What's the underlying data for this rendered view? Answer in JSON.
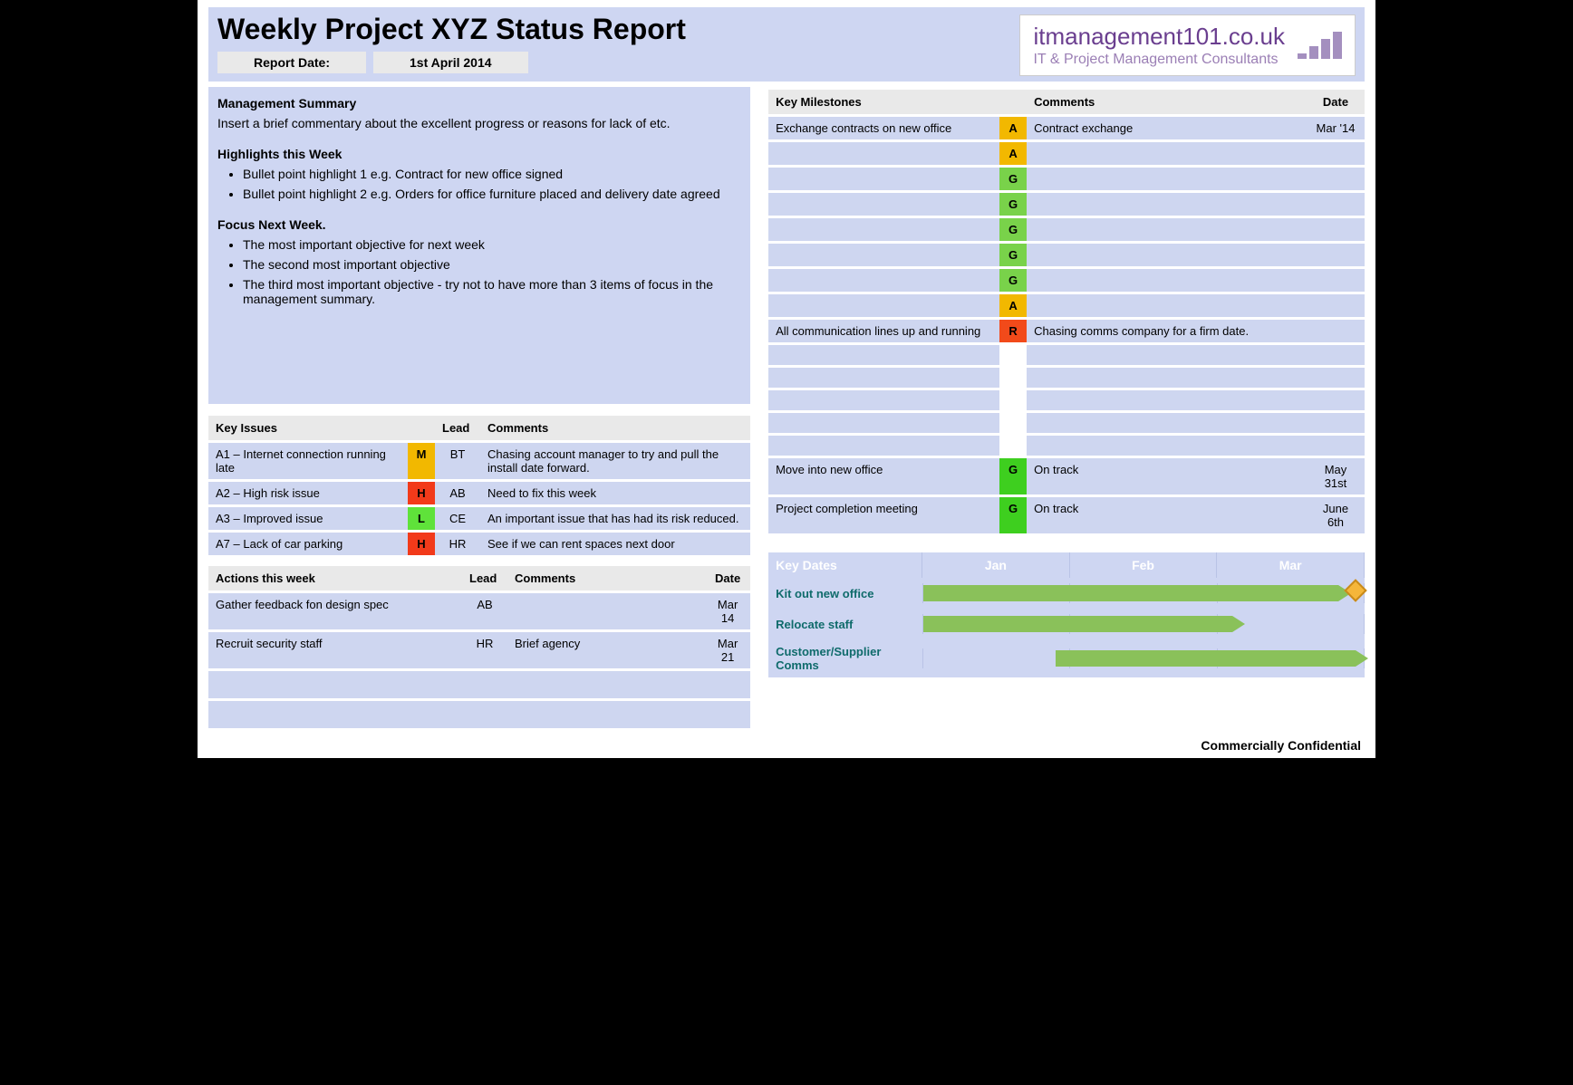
{
  "header": {
    "title": "Weekly Project XYZ Status Report",
    "report_date_label": "Report Date:",
    "report_date_value": "1st April 2014"
  },
  "logo": {
    "line1": "itmanagement101.co.uk",
    "line2": "IT & Project Management Consultants"
  },
  "summary": {
    "management_heading": "Management Summary",
    "management_text": "Insert a brief commentary about the excellent  progress or reasons for lack of etc.",
    "highlights_heading": "Highlights this Week",
    "highlights": [
      "Bullet point highlight 1 e.g. Contract for new office signed",
      "Bullet point highlight 2 e.g. Orders for office furniture placed and delivery date agreed"
    ],
    "focus_heading": "Focus Next Week.",
    "focus": [
      "The most important objective for next week",
      "The second most important objective",
      "The third most important objective  - try not to have more than 3 items of focus in the management summary."
    ]
  },
  "issues_table": {
    "headers": {
      "issue": "Key Issues",
      "sev": "",
      "lead": "Lead",
      "comments": "Comments"
    },
    "rows": [
      {
        "issue": "A1 – Internet connection running late",
        "sev": "M",
        "lead": "BT",
        "comments": "Chasing account manager to try and pull the install date forward."
      },
      {
        "issue": "A2 – High risk issue",
        "sev": "H",
        "lead": "AB",
        "comments": "Need to fix this week"
      },
      {
        "issue": "A3 – Improved issue",
        "sev": "L",
        "lead": "CE",
        "comments": "An important issue that has had its risk reduced."
      },
      {
        "issue": "A7 – Lack of car parking",
        "sev": "H",
        "lead": "HR",
        "comments": "See if we can rent spaces next door"
      }
    ]
  },
  "actions_table": {
    "headers": {
      "action": "Actions this week",
      "lead": "Lead",
      "comments": "Comments",
      "date": "Date"
    },
    "rows": [
      {
        "action": "Gather feedback fon design spec",
        "lead": "AB",
        "comments": "",
        "date": "Mar 14"
      },
      {
        "action": "Recruit security staff",
        "lead": "HR",
        "comments": "Brief agency",
        "date": "Mar 21"
      },
      {
        "action": "",
        "lead": "",
        "comments": "",
        "date": ""
      },
      {
        "action": "",
        "lead": "",
        "comments": "",
        "date": ""
      }
    ]
  },
  "milestones_table": {
    "headers": {
      "milestone": "Key Milestones",
      "rag": "",
      "comments": "Comments",
      "date": "Date"
    },
    "rows": [
      {
        "milestone": "Exchange contracts on new office",
        "rag": "A",
        "comments": "Contract exchange",
        "date": "Mar '14"
      },
      {
        "milestone": "",
        "rag": "A",
        "comments": "",
        "date": ""
      },
      {
        "milestone": "",
        "rag": "G",
        "comments": "",
        "date": ""
      },
      {
        "milestone": "",
        "rag": "G",
        "comments": "",
        "date": ""
      },
      {
        "milestone": "",
        "rag": "G",
        "comments": "",
        "date": ""
      },
      {
        "milestone": "",
        "rag": "G",
        "comments": "",
        "date": ""
      },
      {
        "milestone": "",
        "rag": "G",
        "comments": "",
        "date": ""
      },
      {
        "milestone": "",
        "rag": "A",
        "comments": "",
        "date": ""
      },
      {
        "milestone": "All communication lines up and running",
        "rag": "R",
        "comments": "Chasing comms company for a firm date.",
        "date": ""
      },
      {
        "milestone": "",
        "rag": "none",
        "comments": "",
        "date": ""
      },
      {
        "milestone": "",
        "rag": "none",
        "comments": "",
        "date": ""
      },
      {
        "milestone": "",
        "rag": "none",
        "comments": "",
        "date": ""
      },
      {
        "milestone": "",
        "rag": "none",
        "comments": "",
        "date": ""
      },
      {
        "milestone": "",
        "rag": "none",
        "comments": "",
        "date": ""
      },
      {
        "milestone": "Move into new office",
        "rag": "Gb",
        "comments": "On track",
        "date": "May 31st"
      },
      {
        "milestone": "Project completion meeting",
        "rag": "Gb",
        "comments": "On track",
        "date": "June 6th"
      }
    ],
    "rag_colors": {
      "A": "#f2b800",
      "G": "#79d24a",
      "Gb": "#3ecf1f",
      "R": "#f24a1a",
      "none": "#ffffff"
    }
  },
  "gantt": {
    "header": {
      "label": "Key Dates",
      "months": [
        "Jan",
        "Feb",
        "Mar"
      ]
    },
    "rows": [
      {
        "label": "Kit out new office",
        "bar_start_pct": 0,
        "bar_end_pct": 94,
        "arrow": true,
        "diamond": true
      },
      {
        "label": "Relocate staff",
        "bar_start_pct": 0,
        "bar_end_pct": 70,
        "arrow": true,
        "diamond": false
      },
      {
        "label": "Customer/Supplier Comms",
        "bar_start_pct": 30,
        "bar_end_pct": 98,
        "arrow": true,
        "diamond": false
      }
    ],
    "bar_color": "#8ac15a",
    "diamond_fill": "#f5b63a",
    "diamond_border": "#c98a1a"
  },
  "footer": "Commercially Confidential"
}
